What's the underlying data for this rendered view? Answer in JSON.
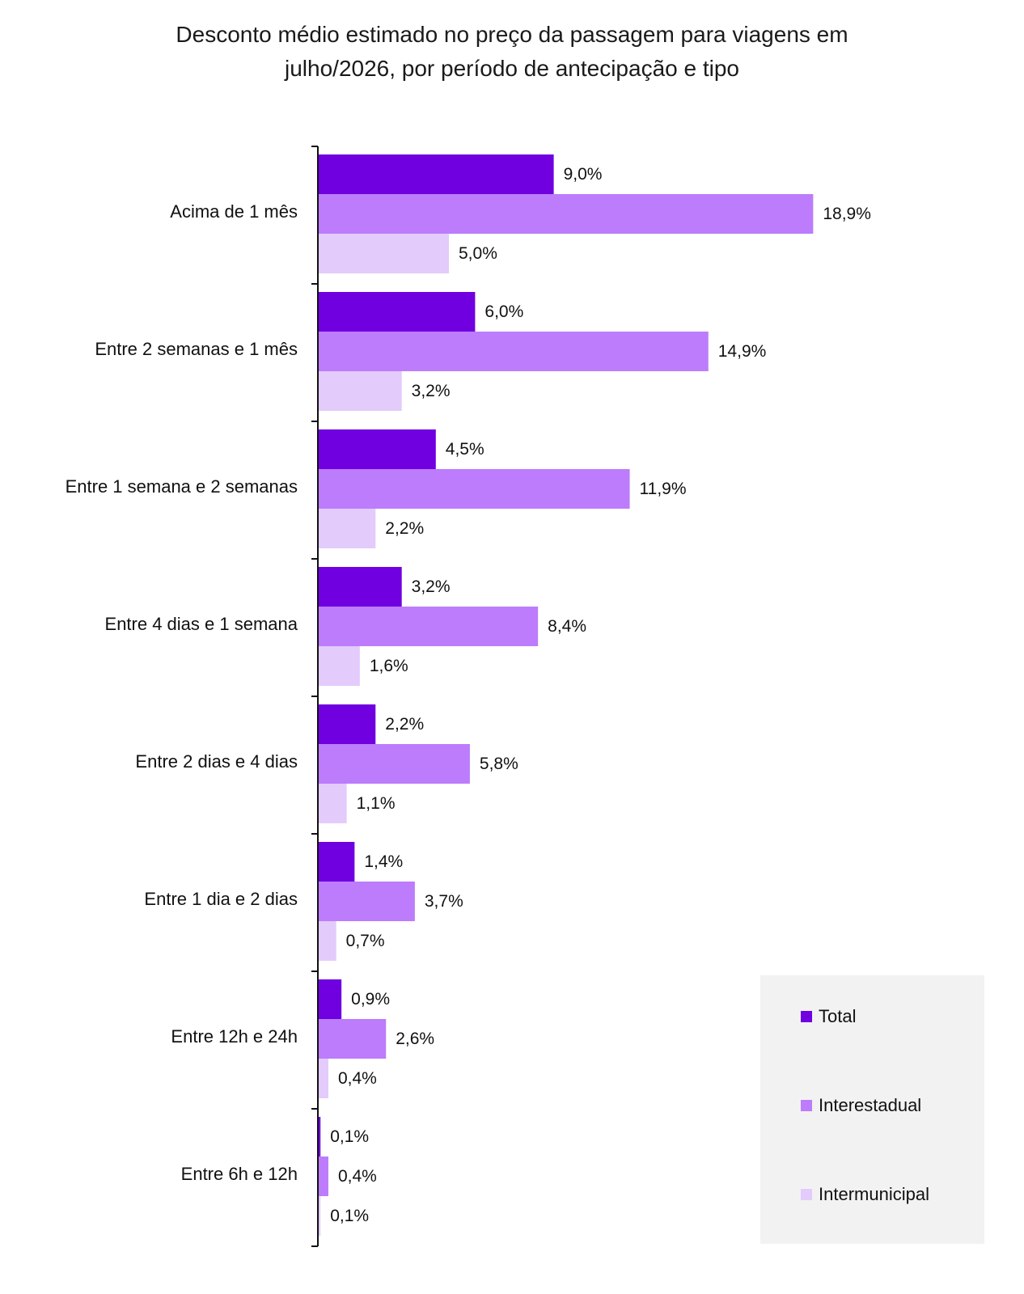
{
  "title_lines": [
    "Desconto médio estimado no preço da passagem para viagens em",
    "julho/2026, por período de antecipação e tipo"
  ],
  "colors": {
    "Total": "#7000e0",
    "Interestadual": "#bc7cfc",
    "Intermunicipal": "#e3cbfc"
  },
  "chart_data": {
    "type": "bar",
    "orientation": "horizontal",
    "title": "Desconto médio estimado no preço da passagem para viagens em julho/2026, por período de antecipação e tipo",
    "categories": [
      "Acima de 1 mês",
      "Entre 2 semanas e 1 mês",
      "Entre 1 semana e 2 semanas",
      "Entre 4 dias e 1 semana",
      "Entre 2 dias e 4 dias",
      "Entre 1 dia e 2 dias",
      "Entre 12h e 24h",
      "Entre 6h e 12h"
    ],
    "series": [
      {
        "name": "Total",
        "values": [
          9.0,
          6.0,
          4.5,
          3.2,
          2.2,
          1.4,
          0.9,
          0.1
        ],
        "labels": [
          "9,0%",
          "6,0%",
          "4,5%",
          "3,2%",
          "2,2%",
          "1,4%",
          "0,9%",
          "0,1%"
        ]
      },
      {
        "name": "Interestadual",
        "values": [
          18.9,
          14.9,
          11.9,
          8.4,
          5.8,
          3.7,
          2.6,
          0.4
        ],
        "labels": [
          "18,9%",
          "14,9%",
          "11,9%",
          "8,4%",
          "5,8%",
          "3,7%",
          "2,6%",
          "0,4%"
        ]
      },
      {
        "name": "Intermunicipal",
        "values": [
          5.0,
          3.2,
          2.2,
          1.6,
          1.1,
          0.7,
          0.4,
          0.1
        ],
        "labels": [
          "5,0%",
          "3,2%",
          "2,2%",
          "1,6%",
          "1,1%",
          "0,7%",
          "0,4%",
          "0,1%"
        ]
      }
    ],
    "xlabel": "",
    "ylabel": "",
    "xlim": [
      0,
      20
    ],
    "grid": false,
    "legend": "bottom-right"
  },
  "legend": {
    "items": [
      "Total",
      "Interestadual",
      "Intermunicipal"
    ]
  }
}
